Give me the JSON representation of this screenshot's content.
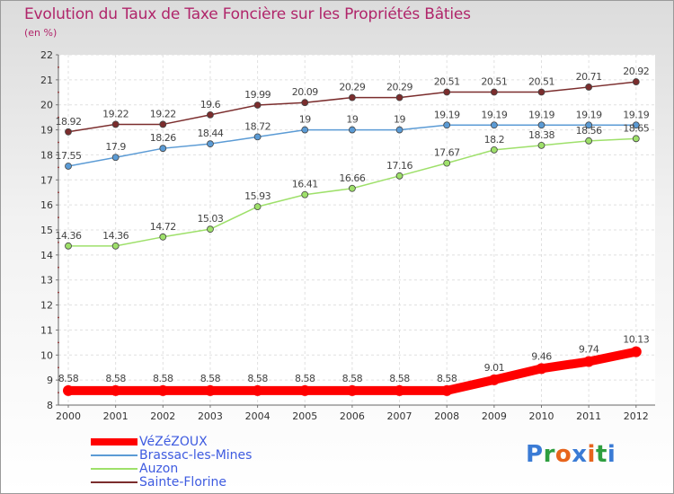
{
  "title": "Evolution du Taux de Taxe Foncière sur les Propriétés Bâties",
  "unit_label": "(en %)",
  "logo": {
    "text": "Proxiti",
    "colors": [
      "#3a7bd5",
      "#2e9e3f",
      "#e7641c",
      "#3a7bd5",
      "#e7641c",
      "#2e9e3f",
      "#3a7bd5"
    ]
  },
  "chart_data": {
    "type": "line",
    "title": "Evolution du Taux de Taxe Foncière sur les Propriétés Bâties",
    "ylabel": "(en %)",
    "xlabel": "",
    "x": [
      "2000",
      "2001",
      "2002",
      "2003",
      "2004",
      "2005",
      "2006",
      "2007",
      "2008",
      "2009",
      "2010",
      "2011",
      "2012"
    ],
    "ylim": [
      8,
      22
    ],
    "yticks": [
      "8",
      "9",
      "10",
      "11",
      "12",
      "13",
      "14",
      "15",
      "16",
      "17",
      "18",
      "19",
      "20",
      "21",
      "22"
    ],
    "grid": true,
    "legend_position": "bottom-left",
    "series": [
      {
        "name": "VéZéZOUX",
        "color": "#ff0000",
        "emphasis": true,
        "values": [
          8.58,
          8.58,
          8.58,
          8.58,
          8.58,
          8.58,
          8.58,
          8.58,
          8.58,
          9.01,
          9.46,
          9.74,
          10.13
        ],
        "labels": [
          "8.58",
          "8.58",
          "8.58",
          "8.58",
          "8.58",
          "8.58",
          "8.58",
          "8.58",
          "8.58",
          "9.01",
          "9.46",
          "9.74",
          "10.13"
        ]
      },
      {
        "name": "Brassac-les-Mines",
        "color": "#5b9bd5",
        "values": [
          17.55,
          17.9,
          18.26,
          18.44,
          18.72,
          19,
          19,
          19,
          19.19,
          19.19,
          19.19,
          19.19,
          19.19
        ],
        "labels": [
          "17.55",
          "17.9",
          "18.26",
          "18.44",
          "18.72",
          "19",
          "19",
          "19",
          "19.19",
          "19.19",
          "19.19",
          "19.19",
          "19.19"
        ]
      },
      {
        "name": "Auzon",
        "color": "#9ee06a",
        "values": [
          14.36,
          14.36,
          14.72,
          15.03,
          15.93,
          16.41,
          16.66,
          17.16,
          17.67,
          18.2,
          18.38,
          18.56,
          18.65
        ],
        "labels": [
          "14.36",
          "14.36",
          "14.72",
          "15.03",
          "15.93",
          "16.41",
          "16.66",
          "17.16",
          "17.67",
          "18.2",
          "18.38",
          "18.56",
          "18.65"
        ]
      },
      {
        "name": "Sainte-Florine",
        "color": "#7b2d2d",
        "values": [
          18.92,
          19.22,
          19.22,
          19.6,
          19.99,
          20.09,
          20.29,
          20.29,
          20.51,
          20.51,
          20.51,
          20.71,
          20.92
        ],
        "labels": [
          "18.92",
          "19.22",
          "19.22",
          "19.6",
          "19.99",
          "20.09",
          "20.29",
          "20.29",
          "20.51",
          "20.51",
          "20.51",
          "20.71",
          "20.92"
        ]
      }
    ]
  }
}
